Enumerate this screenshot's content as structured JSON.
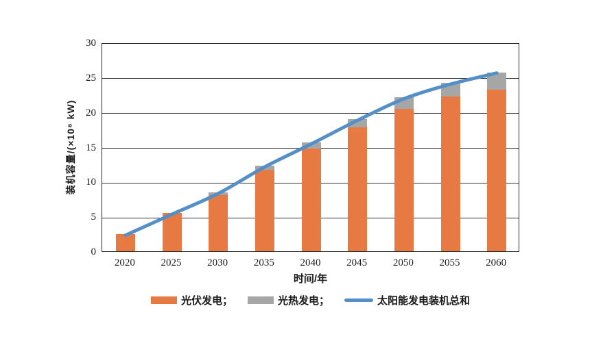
{
  "figure": {
    "background": "#ffffff",
    "axis_color": "#262626",
    "text_color": "#1a1a1a"
  },
  "chart_data": {
    "type": "bar",
    "subtype": "stacked-bars-with-line-overlay",
    "title": "",
    "xlabel": "时间/年",
    "ylabel": "装机容量/(×10⁸ kW)",
    "categories": [
      "2020",
      "2025",
      "2030",
      "2035",
      "2040",
      "2045",
      "2050",
      "2055",
      "2060"
    ],
    "series": [
      {
        "name": "光伏发电",
        "type": "bar",
        "color": "#E67A42",
        "values": [
          2.5,
          5.5,
          8.1,
          11.7,
          14.8,
          17.8,
          20.5,
          22.2,
          23.2
        ]
      },
      {
        "name": "光热发电",
        "type": "bar",
        "color": "#A6A6A6",
        "values": [
          0,
          0,
          0.4,
          0.6,
          0.8,
          1.2,
          1.6,
          2.0,
          2.5
        ]
      },
      {
        "name": "太阳能发电装机总和",
        "type": "line",
        "color": "#548FC8",
        "values": [
          2.5,
          5.5,
          8.5,
          12.3,
          15.6,
          19.0,
          22.1,
          24.2,
          25.8
        ]
      }
    ],
    "ylim": [
      0,
      30
    ],
    "ytick_step": 5,
    "yticks": [
      0,
      5,
      10,
      15,
      20,
      25,
      30
    ],
    "grid": "horizontal",
    "legend_position": "bottom",
    "legend": [
      {
        "label": "光伏发电；",
        "swatch": "rect",
        "color": "#E67A42"
      },
      {
        "label": "光热发电；",
        "swatch": "rect",
        "color": "#A6A6A6"
      },
      {
        "label": "太阳能发电装机总和",
        "swatch": "line",
        "color": "#548FC8"
      }
    ]
  }
}
